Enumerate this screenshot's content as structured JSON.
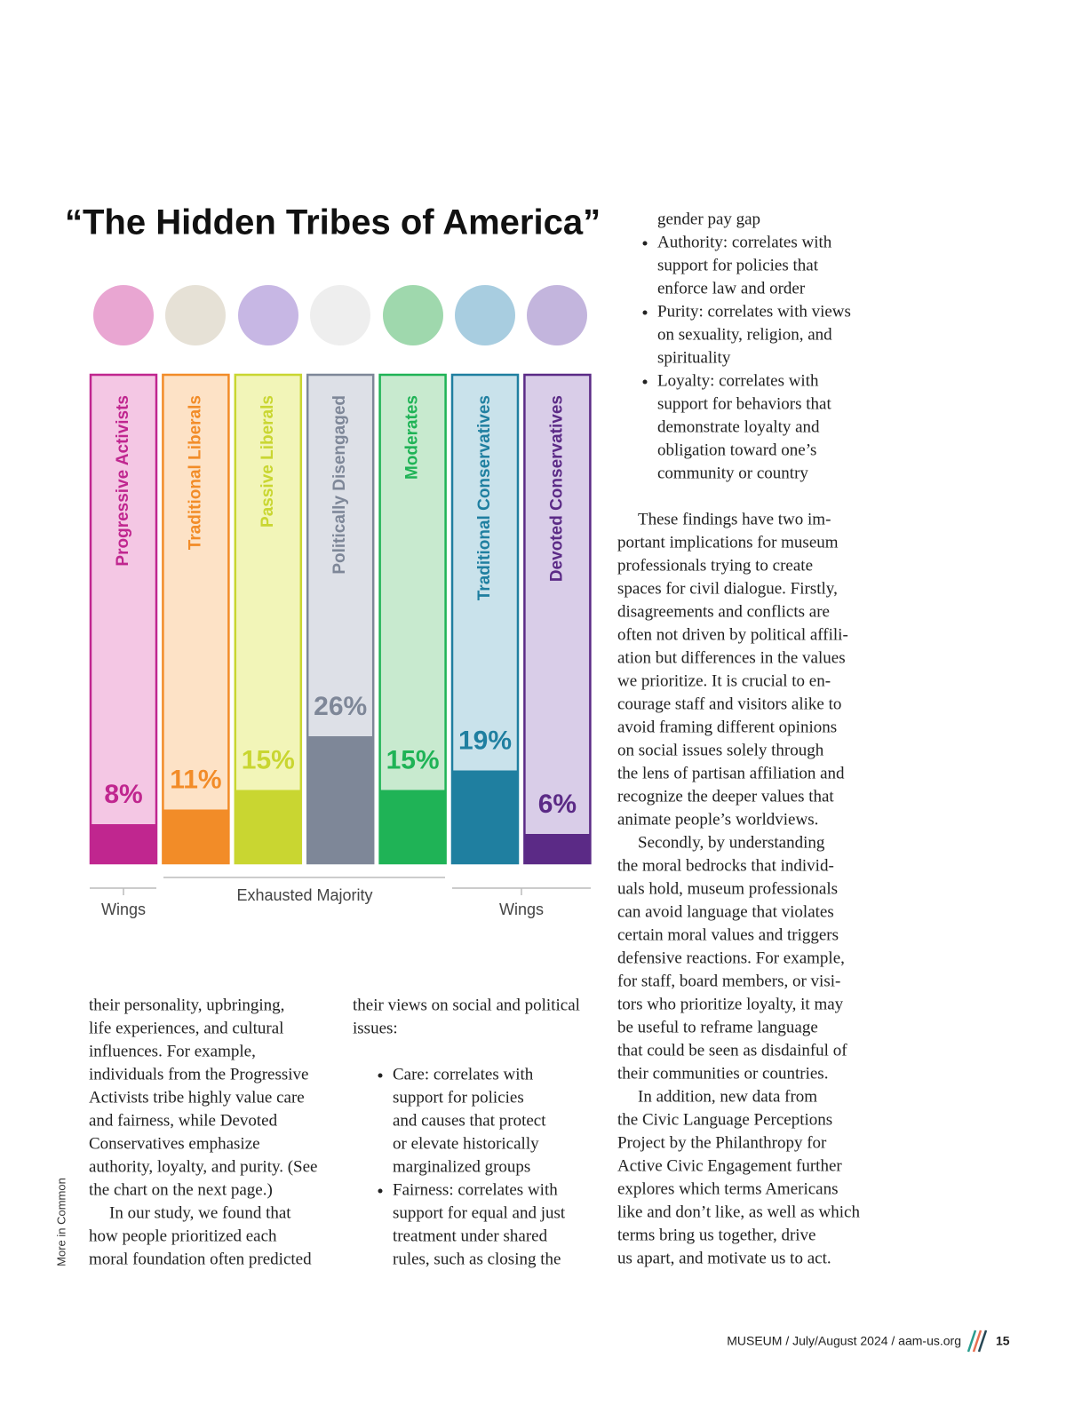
{
  "title": "“The Hidden Tribes of America”",
  "chart_data": {
    "type": "bar",
    "categories": [
      "Progressive Activists",
      "Traditional Liberals",
      "Passive Liberals",
      "Politically Disengaged",
      "Moderates",
      "Traditional Conservatives",
      "Devoted Conservatives"
    ],
    "values": [
      8,
      11,
      15,
      26,
      15,
      19,
      6
    ],
    "value_labels": [
      "8%",
      "11%",
      "15%",
      "26%",
      "15%",
      "19%",
      "6%"
    ],
    "colors": [
      "#c0268f",
      "#f28c28",
      "#c9d631",
      "#7e8798",
      "#1fb356",
      "#1f7fa0",
      "#5b2a86"
    ],
    "background_colors": [
      "#f4c7e4",
      "#fde2c6",
      "#f2f5b8",
      "#dde0e7",
      "#c8eacf",
      "#c9e2eb",
      "#d9cde8"
    ],
    "ylim": [
      0,
      100
    ],
    "group_labels": [
      "Wings",
      "Exhausted Majority",
      "Wings"
    ]
  },
  "left_column": {
    "continued": [
      "their personality, upbringing,",
      "life experiences, and cultural",
      "influences. For example,",
      "individuals from the Progressive",
      "Activists tribe highly value care",
      "and fairness, while Devoted",
      "Conservatives emphasize",
      "authority, loyalty, and purity. (See",
      "the chart on the next page.)"
    ],
    "paragraphs": [
      [
        "In our study, we found that",
        "how people prioritized each",
        "moral foundation often predicted"
      ]
    ]
  },
  "middle_column": {
    "continued": [
      "their views on social and political",
      "issues:"
    ],
    "bullets": [
      [
        "Care: correlates with",
        "support for policies",
        "and causes that protect",
        "or elevate historically",
        "marginalized groups"
      ],
      [
        "Fairness: correlates with",
        "support for equal and just",
        "treatment under shared",
        "rules, such as closing the"
      ]
    ]
  },
  "right_column": {
    "continued": [
      "gender pay gap"
    ],
    "bullets": [
      [
        "Authority: correlates with",
        "support for policies that",
        "enforce law and order"
      ],
      [
        "Purity: correlates with views",
        "on sexuality, religion, and",
        "spirituality"
      ],
      [
        "Loyalty: correlates with",
        "support for behaviors that",
        "demonstrate loyalty and",
        "obligation toward one’s",
        "community or country"
      ]
    ],
    "paragraphs": [
      [
        "These findings have two im-",
        "portant implications for museum",
        "professionals trying to create",
        "spaces for civil dialogue. Firstly,",
        "disagreements and conflicts are",
        "often not driven by political affili-",
        "ation but differences in the values",
        "we prioritize. It is crucial to en-",
        "courage staff and visitors alike to",
        "avoid framing different opinions",
        "on social issues solely through",
        "the lens of partisan affiliation and",
        "recognize the deeper values that",
        "animate people’s worldviews."
      ],
      [
        "Secondly, by understanding",
        "the moral bedrocks that individ-",
        "uals hold, museum professionals",
        "can avoid language that violates",
        "certain moral values and triggers",
        "defensive reactions. For example,",
        "for staff, board members, or visi-",
        "tors who prioritize loyalty, it may",
        "be useful to reframe language",
        "that could be seen as disdainful of",
        "their communities or countries."
      ],
      [
        "In addition, new data from",
        "the Civic Language Perceptions",
        "Project by the Philanthropy for",
        "Active Civic Engagement further",
        "explores which terms Americans",
        "like and don’t like, as well as which",
        "terms bring us together, drive",
        "us apart, and motivate us to act."
      ]
    ]
  },
  "side_label": "More in Common",
  "footer": {
    "text": "MUSEUM / July/August 2024 / aam-us.org",
    "page": "15"
  }
}
